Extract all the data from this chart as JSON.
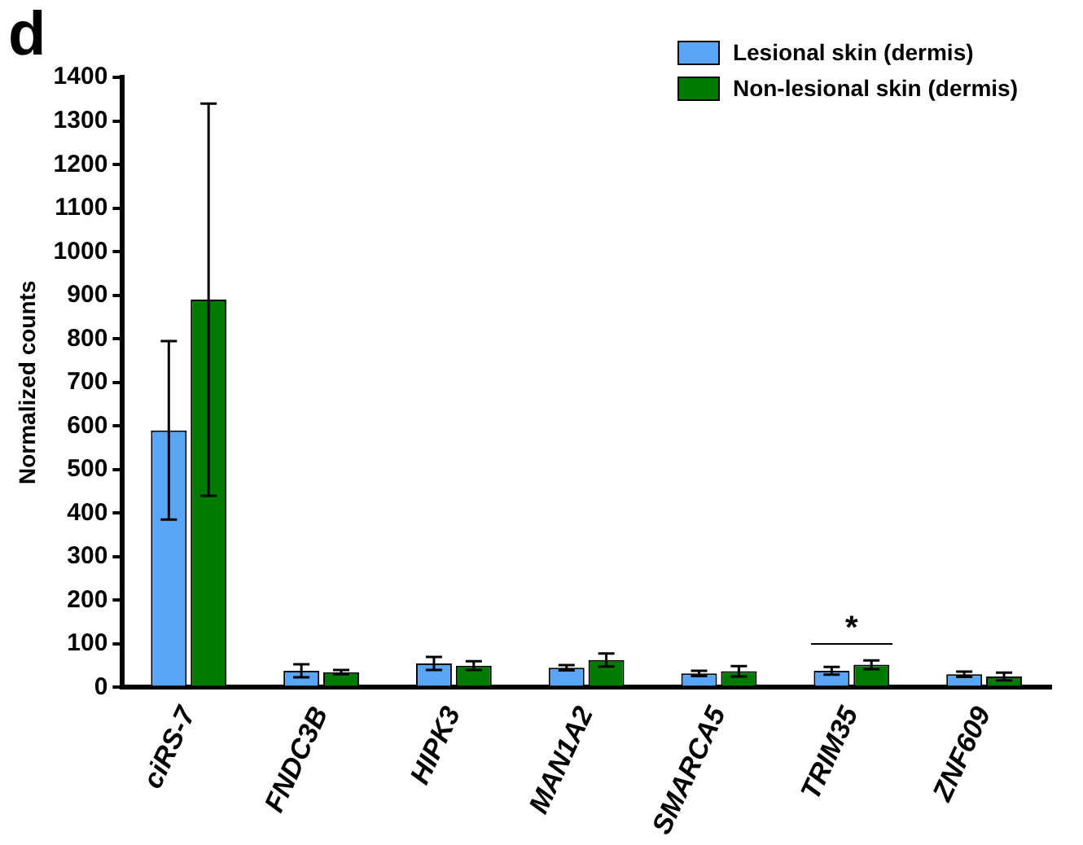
{
  "chart_data": {
    "type": "bar",
    "title": "d",
    "ylabel": "Normalized counts",
    "categories": [
      "ciRS-7",
      "FNDC3B",
      "HIPK3",
      "MAN1A2",
      "SMARCA5",
      "TRIM35",
      "ZNF609"
    ],
    "series": [
      {
        "name": "Lesional skin (dermis)",
        "color": "#5aa5f5",
        "values": [
          590,
          38,
          55,
          45,
          32,
          38,
          30
        ],
        "errors": [
          205,
          15,
          15,
          6,
          6,
          9,
          6
        ]
      },
      {
        "name": "Non-lesional skin (dermis)",
        "color": "#007a00",
        "values": [
          890,
          35,
          50,
          63,
          37,
          52,
          25
        ],
        "errors": [
          450,
          5,
          10,
          15,
          12,
          10,
          9
        ]
      }
    ],
    "ylim": [
      0,
      1400
    ],
    "yticks": [
      0,
      100,
      200,
      300,
      400,
      500,
      600,
      700,
      800,
      900,
      1000,
      1100,
      1200,
      1300,
      1400
    ],
    "annotations": [
      "*"
    ],
    "grid": false,
    "legend": "top right"
  }
}
